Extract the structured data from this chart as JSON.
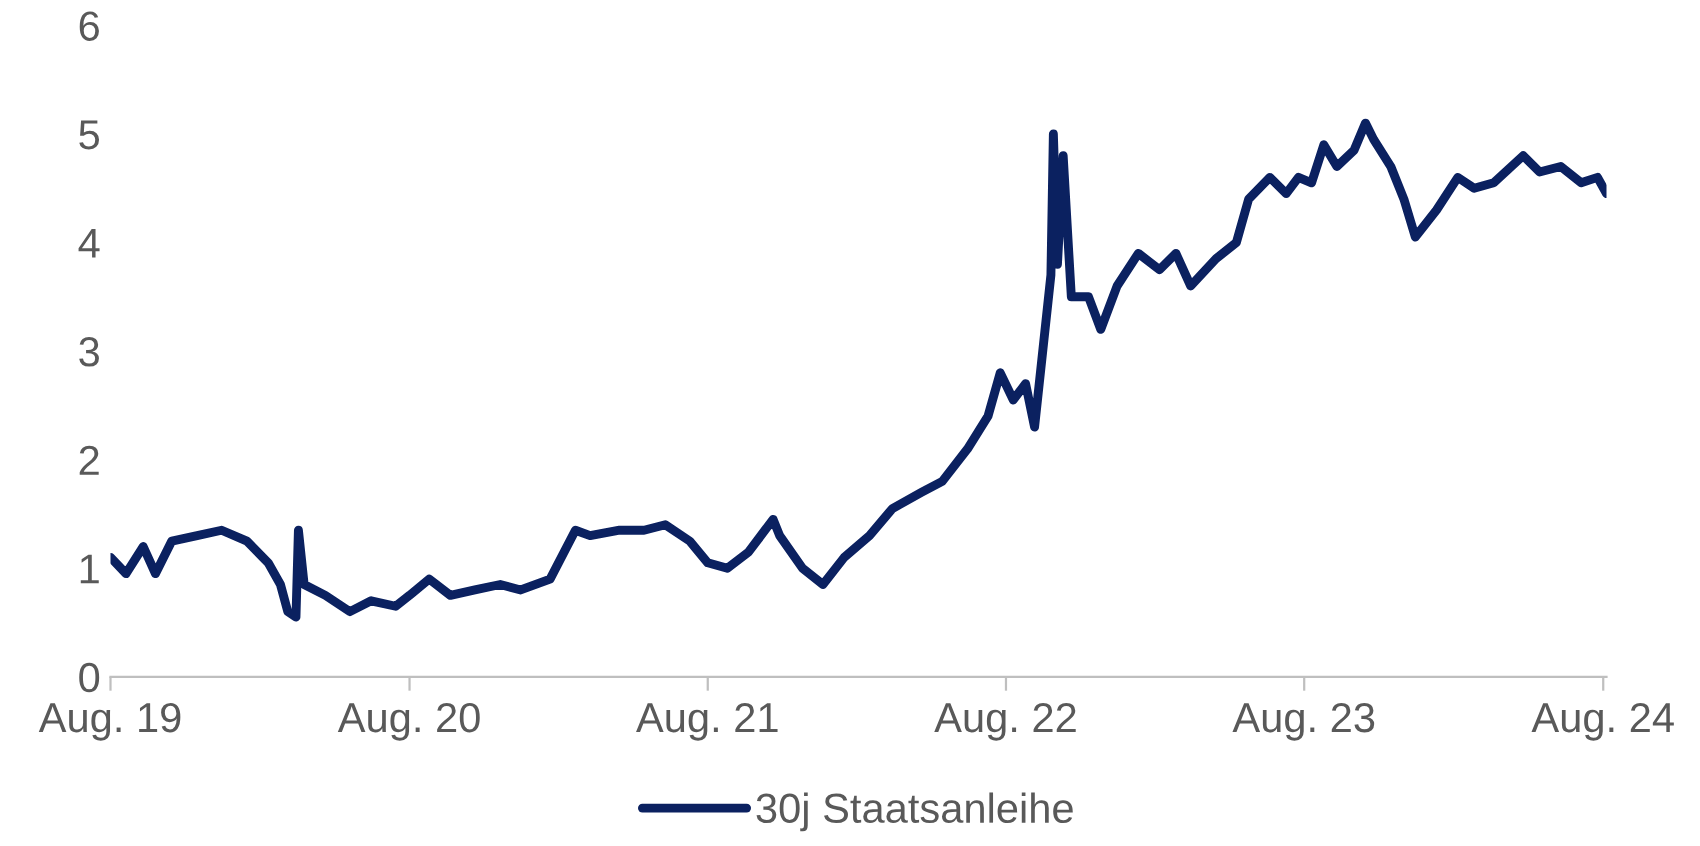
{
  "chart_data": {
    "type": "line",
    "x": [
      "2019-08-01",
      "2019-08-20",
      "2019-09-10",
      "2019-09-25",
      "2019-10-15",
      "2019-11-15",
      "2019-12-15",
      "2020-01-15",
      "2020-02-10",
      "2020-02-25",
      "2020-03-05",
      "2020-03-15",
      "2020-03-18",
      "2020-03-25",
      "2020-04-20",
      "2020-05-20",
      "2020-06-15",
      "2020-07-15",
      "2020-08-01",
      "2020-08-25",
      "2020-09-20",
      "2020-10-20",
      "2020-11-20",
      "2020-12-15",
      "2021-01-20",
      "2021-02-20",
      "2021-03-10",
      "2021-04-15",
      "2021-05-15",
      "2021-06-10",
      "2021-07-10",
      "2021-08-01",
      "2021-08-25",
      "2021-09-20",
      "2021-10-20",
      "2021-10-28",
      "2021-11-25",
      "2021-12-20",
      "2022-01-15",
      "2022-02-15",
      "2022-03-15",
      "2022-04-20",
      "2022-05-15",
      "2022-06-15",
      "2022-07-10",
      "2022-07-25",
      "2022-08-10",
      "2022-08-25",
      "2022-09-05",
      "2022-09-15",
      "2022-09-25",
      "2022-09-28",
      "2022-10-03",
      "2022-10-10",
      "2022-10-20",
      "2022-11-10",
      "2022-11-25",
      "2022-12-15",
      "2023-01-10",
      "2023-02-05",
      "2023-02-25",
      "2023-03-15",
      "2023-04-15",
      "2023-05-10",
      "2023-05-25",
      "2023-06-20",
      "2023-07-10",
      "2023-07-25",
      "2023-08-10",
      "2023-08-25",
      "2023-09-10",
      "2023-10-01",
      "2023-10-15",
      "2023-10-25",
      "2023-11-15",
      "2023-12-01",
      "2023-12-15",
      "2024-01-10",
      "2024-02-05",
      "2024-02-25",
      "2024-03-20",
      "2024-04-25",
      "2024-05-15",
      "2024-06-10",
      "2024-07-05",
      "2024-07-25",
      "2024-08-05"
    ],
    "series": [
      {
        "name": "30j Staatsanleihe",
        "color": "#0b2160",
        "values": [
          1.1,
          0.95,
          1.2,
          0.95,
          1.25,
          1.3,
          1.35,
          1.25,
          1.05,
          0.85,
          0.6,
          0.55,
          1.35,
          0.85,
          0.75,
          0.6,
          0.7,
          0.65,
          0.75,
          0.9,
          0.75,
          0.8,
          0.85,
          0.8,
          0.9,
          1.35,
          1.3,
          1.35,
          1.35,
          1.4,
          1.25,
          1.05,
          1.0,
          1.15,
          1.45,
          1.3,
          1.0,
          0.85,
          1.1,
          1.3,
          1.55,
          1.7,
          1.8,
          2.1,
          2.4,
          2.8,
          2.55,
          2.7,
          2.3,
          3.0,
          3.7,
          5.0,
          3.8,
          4.8,
          3.5,
          3.5,
          3.2,
          3.6,
          3.9,
          3.75,
          3.9,
          3.6,
          3.85,
          4.0,
          4.4,
          4.6,
          4.45,
          4.6,
          4.55,
          4.9,
          4.7,
          4.85,
          5.1,
          4.95,
          4.7,
          4.4,
          4.05,
          4.3,
          4.6,
          4.5,
          4.55,
          4.8,
          4.65,
          4.7,
          4.55,
          4.6,
          4.45
        ]
      }
    ],
    "xlim": [
      "2019-08-01",
      "2024-08-05"
    ],
    "xticks": [
      {
        "value": "2019-08-01",
        "label": "Aug. 19"
      },
      {
        "value": "2020-08-01",
        "label": "Aug. 20"
      },
      {
        "value": "2021-08-01",
        "label": "Aug. 21"
      },
      {
        "value": "2022-08-01",
        "label": "Aug. 22"
      },
      {
        "value": "2023-08-01",
        "label": "Aug. 23"
      },
      {
        "value": "2024-08-01",
        "label": "Aug. 24"
      }
    ],
    "ylim": [
      0,
      6
    ],
    "yticks": [
      0,
      1,
      2,
      3,
      4,
      5,
      6
    ],
    "grid": false,
    "legend": "bottom",
    "marker": "none",
    "line_style": "solid"
  }
}
